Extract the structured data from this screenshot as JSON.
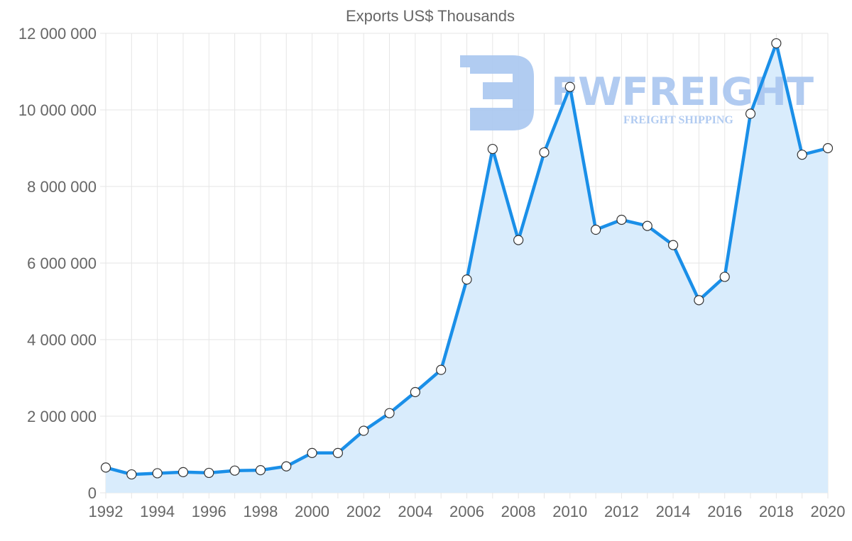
{
  "chart_data": {
    "type": "line",
    "fill": "area",
    "title": "Exports US$ Thousands",
    "xlabel": "",
    "ylabel": "",
    "x": [
      1992,
      1993,
      1994,
      1995,
      1996,
      1997,
      1998,
      1999,
      2000,
      2001,
      2002,
      2003,
      2004,
      2005,
      2006,
      2007,
      2008,
      2009,
      2010,
      2011,
      2012,
      2013,
      2014,
      2015,
      2016,
      2017,
      2018,
      2019,
      2020
    ],
    "series": [
      {
        "name": "Exports US$ Thousands",
        "values": [
          660000,
          480000,
          510000,
          540000,
          520000,
          580000,
          590000,
          690000,
          1040000,
          1040000,
          1620000,
          2080000,
          2630000,
          3210000,
          5570000,
          8980000,
          6600000,
          8890000,
          10600000,
          6870000,
          7130000,
          6970000,
          6470000,
          5030000,
          5640000,
          9900000,
          11740000,
          8830000,
          9000000
        ]
      }
    ],
    "xlim": [
      1992,
      2020
    ],
    "ylim": [
      0,
      12000000
    ],
    "x_ticks": [
      "1992",
      "1994",
      "1996",
      "1998",
      "2000",
      "2002",
      "2004",
      "2006",
      "2008",
      "2010",
      "2012",
      "2014",
      "2016",
      "2018",
      "2020"
    ],
    "y_ticks": [
      "0",
      "2 000 000",
      "4 000 000",
      "6 000 000",
      "8 000 000",
      "10 000 000",
      "12 000 000"
    ],
    "grid": true,
    "colors": {
      "line": "#1a8fe8",
      "fill": "#d9ecfc",
      "grid": "#e6e6e6",
      "marker_fill": "#ffffff",
      "marker_stroke": "#333333"
    }
  },
  "watermark": {
    "brand": "FWFREIGHT",
    "tagline": "FREIGHT SHIPPING",
    "color": "#a9c6f0"
  }
}
